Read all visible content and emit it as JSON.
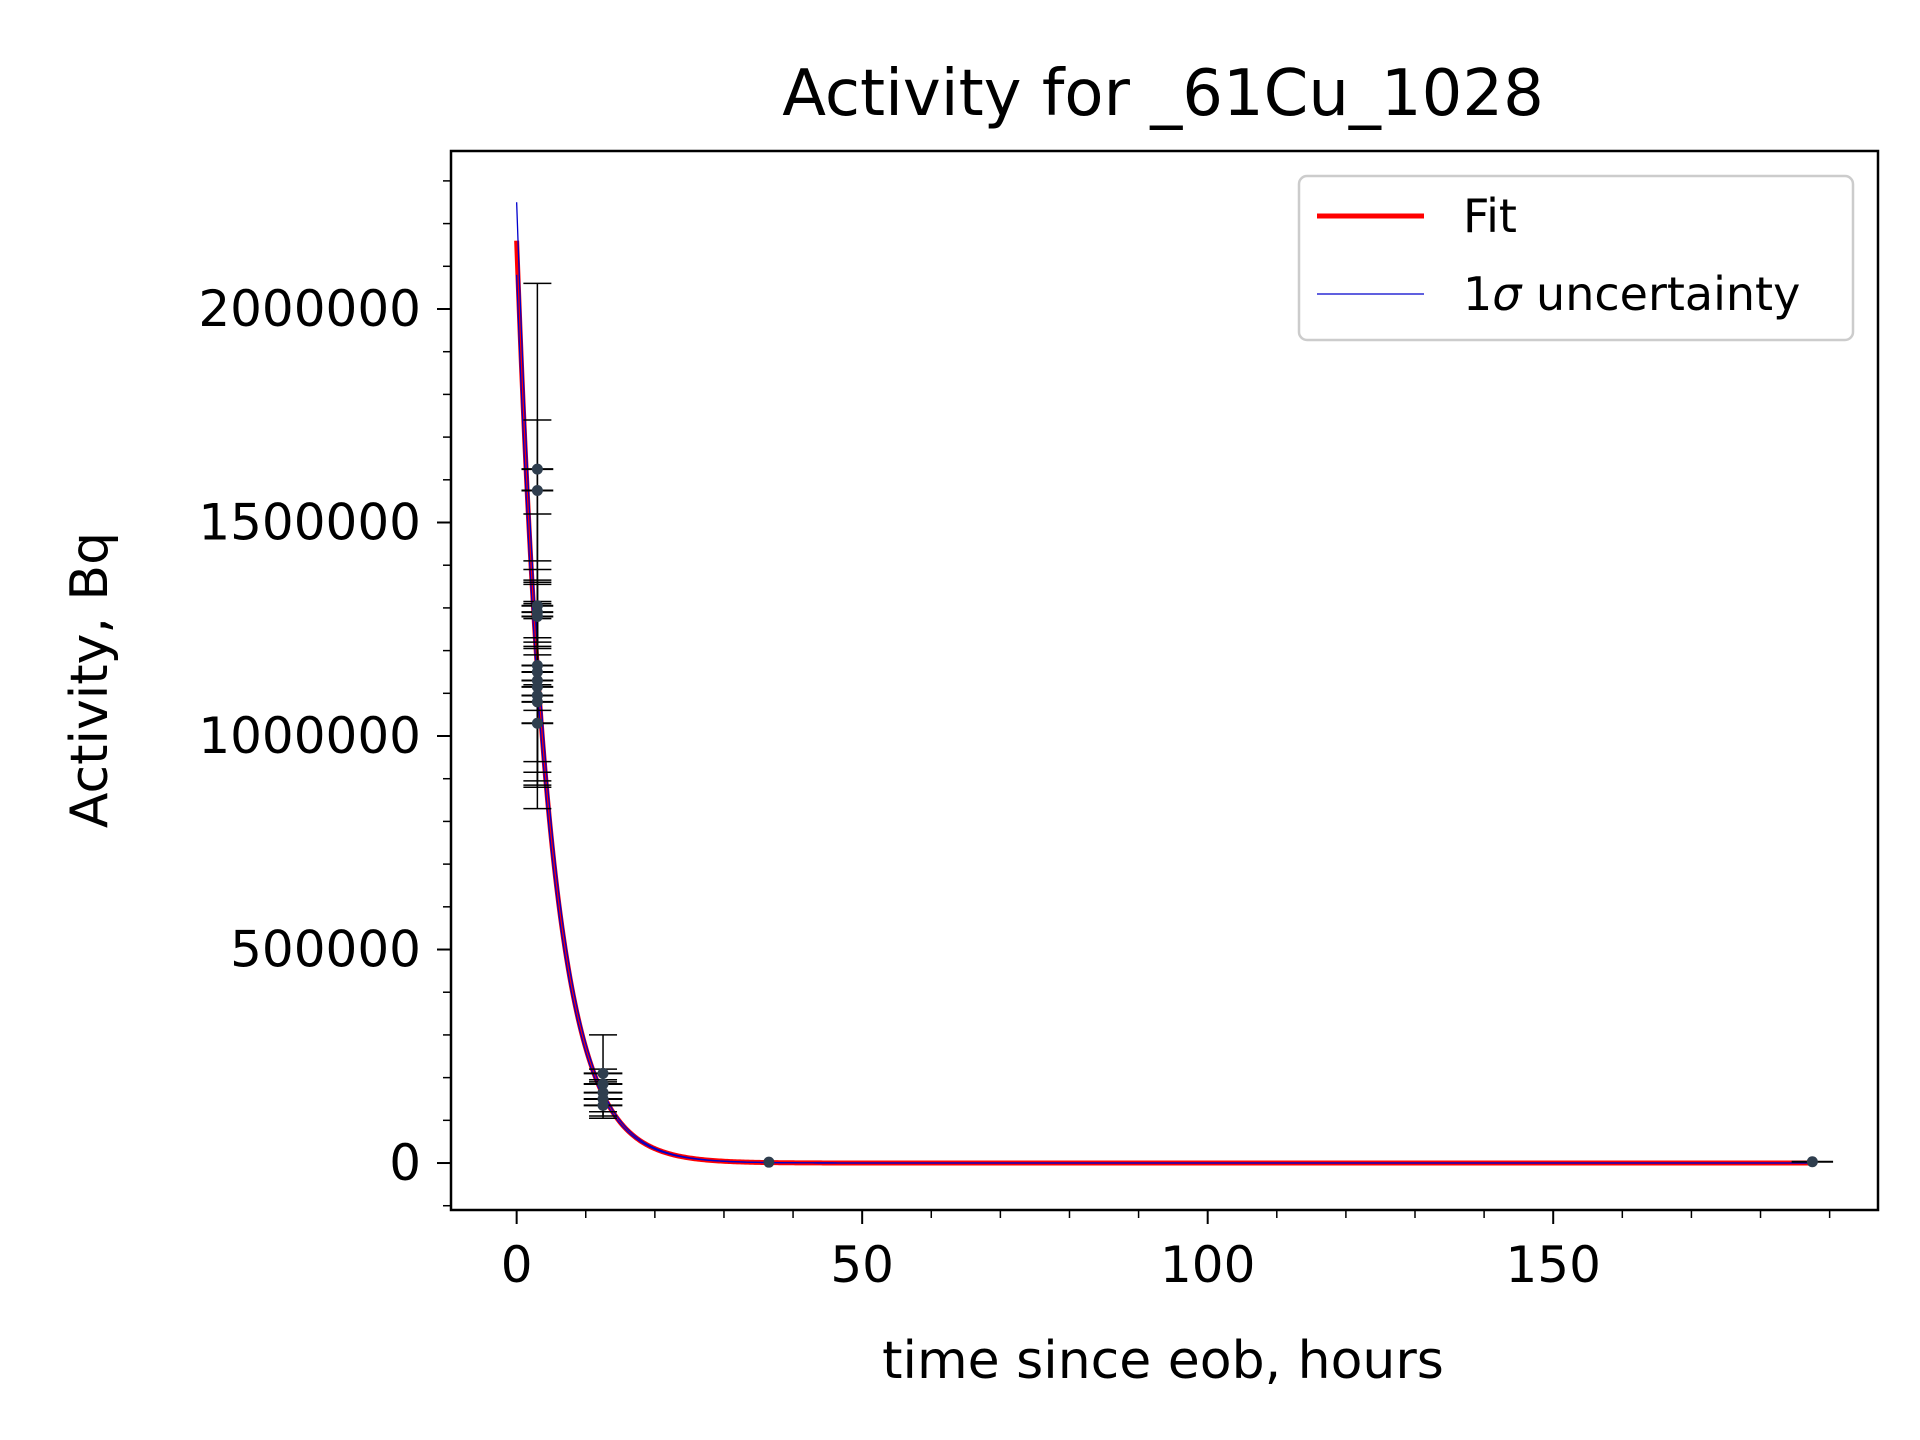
{
  "chart_data": {
    "type": "scatter",
    "title": "Activity for _61Cu_1028",
    "xlabel": "time since eob, hours",
    "ylabel": "Activity, Bq",
    "xlim": [
      -9.5,
      197
    ],
    "ylim": [
      -110000,
      2370000
    ],
    "xticks": [
      0,
      50,
      100,
      150
    ],
    "yticks": [
      0,
      500000,
      1000000,
      1500000,
      2000000
    ],
    "grid": false,
    "legend_position": "top-right",
    "legend": [
      {
        "label": "Fit",
        "color": "#ff0000"
      },
      {
        "label": "1σ uncertainty",
        "label_prefix": "1",
        "label_sigma": "σ",
        "label_suffix": " uncertainty",
        "color": "#0000cc"
      }
    ],
    "fit": {
      "name": "Fit",
      "model": "exponential decay",
      "A0": 2160000,
      "half_life_hours": 3.33,
      "color": "#ff0000"
    },
    "uncertainty": {
      "name": "1σ uncertainty",
      "A0_upper": 2250000,
      "A0_lower": 2080000,
      "color": "#0000cc"
    },
    "points": [
      {
        "x": 3.0,
        "y": 1625000,
        "xerr": 2.3,
        "yerr": 435000
      },
      {
        "x": 3.0,
        "y": 1575000,
        "xerr": 2.3,
        "yerr": 165000
      },
      {
        "x": 3.0,
        "y": 1305000,
        "xerr": 2.3,
        "yerr": 85000
      },
      {
        "x": 3.0,
        "y": 1290000,
        "xerr": 2.3,
        "yerr": 230000
      },
      {
        "x": 3.0,
        "y": 1280000,
        "xerr": 2.3,
        "yerr": 75000
      },
      {
        "x": 3.0,
        "y": 1165000,
        "xerr": 2.3,
        "yerr": 45000
      },
      {
        "x": 3.0,
        "y": 1150000,
        "xerr": 2.3,
        "yerr": 210000
      },
      {
        "x": 3.0,
        "y": 1130000,
        "xerr": 2.3,
        "yerr": 235000
      },
      {
        "x": 3.0,
        "y": 1115000,
        "xerr": 2.3,
        "yerr": 200000
      },
      {
        "x": 3.0,
        "y": 1095000,
        "xerr": 2.3,
        "yerr": 215000
      },
      {
        "x": 3.0,
        "y": 1080000,
        "xerr": 2.3,
        "yerr": 195000
      },
      {
        "x": 3.0,
        "y": 1030000,
        "xerr": 2.3,
        "yerr": 200000
      },
      {
        "x": 12.5,
        "y": 210000,
        "xerr": 2.8,
        "yerr": 90000
      },
      {
        "x": 12.5,
        "y": 185000,
        "xerr": 2.8,
        "yerr": 35000
      },
      {
        "x": 12.5,
        "y": 165000,
        "xerr": 2.8,
        "yerr": 30000
      },
      {
        "x": 12.5,
        "y": 150000,
        "xerr": 2.8,
        "yerr": 40000
      },
      {
        "x": 12.5,
        "y": 135000,
        "xerr": 2.8,
        "yerr": 30000
      },
      {
        "x": 36.5,
        "y": 2000,
        "xerr": 0,
        "yerr": 0
      },
      {
        "x": 187.5,
        "y": 3000,
        "xerr": 3,
        "yerr": 0
      }
    ]
  }
}
